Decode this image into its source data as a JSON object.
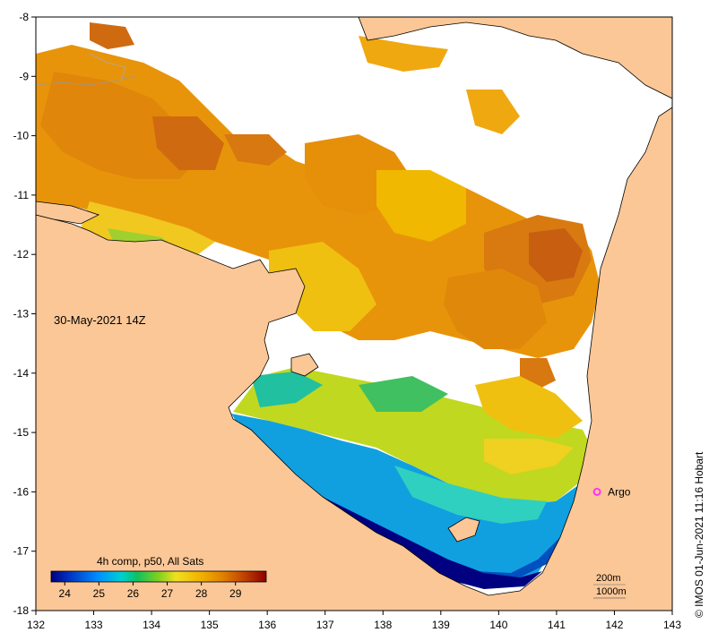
{
  "map": {
    "date_label": "30-May-2021 14Z",
    "x_ticks": [
      "132",
      "133",
      "134",
      "135",
      "136",
      "137",
      "138",
      "139",
      "140",
      "141",
      "142",
      "143"
    ],
    "y_ticks": [
      "-8",
      "-9",
      "-10",
      "-11",
      "-12",
      "-13",
      "-14",
      "-15",
      "-16",
      "-17",
      "-18"
    ],
    "x_range": [
      132,
      143
    ],
    "y_range": [
      -18,
      -8
    ],
    "colors": {
      "land": "#fbc796",
      "no_data": "#ffffff",
      "coast": "#000000"
    },
    "argo": {
      "label": "Argo",
      "lon": 141.7,
      "lat": -16.0,
      "color": "#ff33ff"
    },
    "depth_legend": [
      "200m",
      "1000m"
    ],
    "colorbar": {
      "title": "4h comp, p50, All Sats",
      "ticks": [
        "24",
        "25",
        "26",
        "27",
        "28",
        "29"
      ],
      "range": [
        23.6,
        29.9
      ],
      "stops": [
        "#000080",
        "#0040d0",
        "#0090ff",
        "#00d0d0",
        "#10c060",
        "#80d020",
        "#f0e020",
        "#f0b000",
        "#e08000",
        "#c04000",
        "#8b0000"
      ]
    }
  },
  "credit": "© IMOS 01-Jun-2021 11:16 Hobart"
}
